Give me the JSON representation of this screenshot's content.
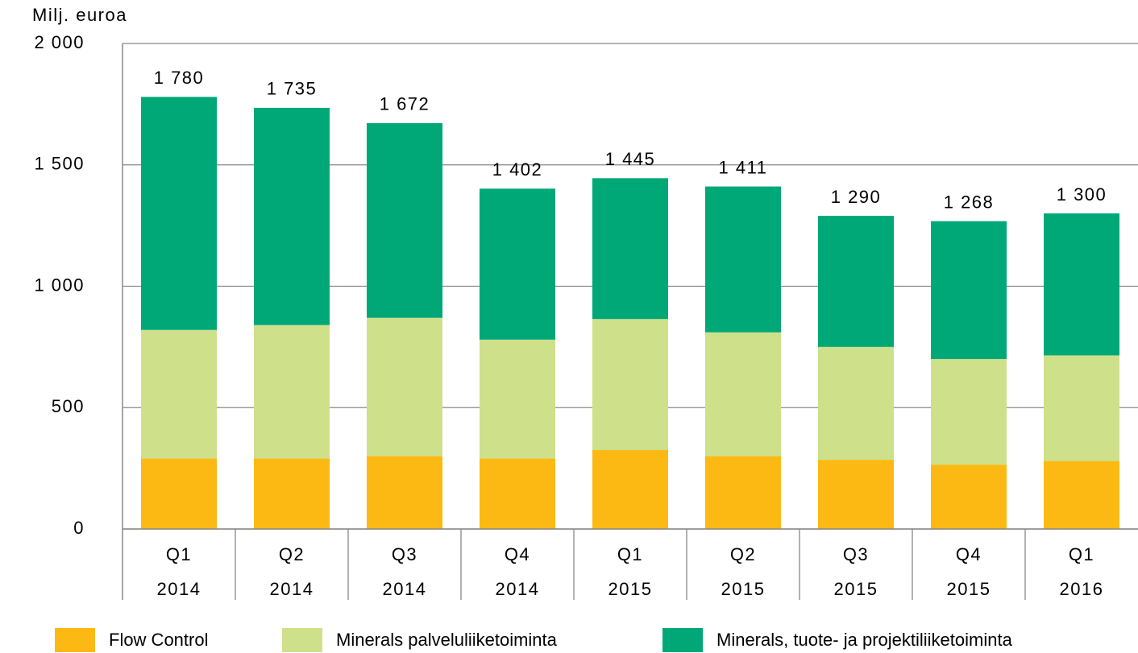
{
  "chart_data": {
    "type": "stacked_bar",
    "y_axis_label": "Milj. euroa",
    "categories": [
      {
        "quarter": "Q1",
        "year": "2014"
      },
      {
        "quarter": "Q2",
        "year": "2014"
      },
      {
        "quarter": "Q3",
        "year": "2014"
      },
      {
        "quarter": "Q4",
        "year": "2014"
      },
      {
        "quarter": "Q1",
        "year": "2015"
      },
      {
        "quarter": "Q2",
        "year": "2015"
      },
      {
        "quarter": "Q3",
        "year": "2015"
      },
      {
        "quarter": "Q4",
        "year": "2015"
      },
      {
        "quarter": "Q1",
        "year": "2016"
      }
    ],
    "series": [
      {
        "name": "Flow Control",
        "color": "#fdb913",
        "values": [
          290,
          290,
          300,
          290,
          325,
          300,
          285,
          265,
          280
        ]
      },
      {
        "name": "Minerals palveluliiketoiminta",
        "color": "#cfe08a",
        "values": [
          530,
          550,
          570,
          490,
          540,
          510,
          465,
          435,
          435
        ]
      },
      {
        "name": "Minerals, tuote- ja projektiliiketoiminta",
        "color": "#00a878",
        "values": [
          960,
          895,
          802,
          622,
          580,
          601,
          540,
          568,
          585
        ]
      }
    ],
    "totals": [
      1780,
      1735,
      1672,
      1402,
      1445,
      1411,
      1290,
      1268,
      1300
    ],
    "total_labels": [
      "1 780",
      "1 735",
      "1 672",
      "1 402",
      "1 445",
      "1 411",
      "1 290",
      "1 268",
      "1 300"
    ],
    "ylim": [
      0,
      2000
    ],
    "yticks": [
      0,
      500,
      {
        "value": 1000,
        "label": "1 000"
      },
      {
        "value": 1500,
        "label": "1 500"
      },
      {
        "value": 2000,
        "label": "2 000"
      }
    ],
    "grid": true,
    "legend": "bottom"
  }
}
